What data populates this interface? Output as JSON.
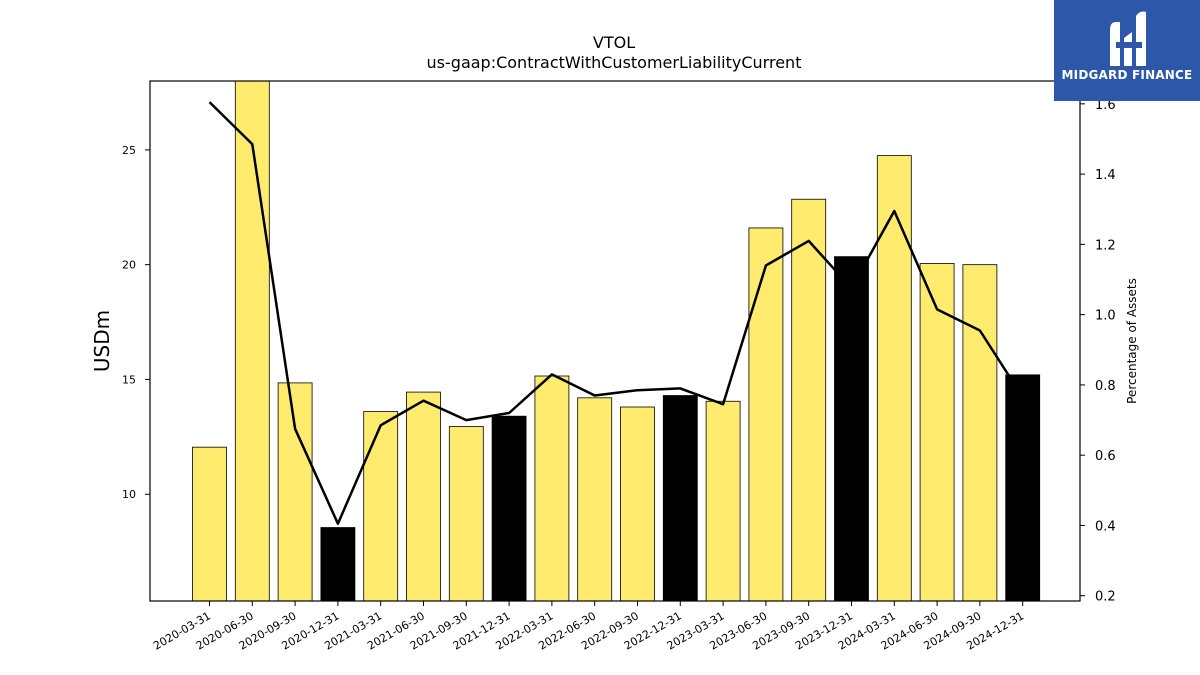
{
  "brand": {
    "name": "MIDGARD FINANCE",
    "bg_color": "#2d57a8"
  },
  "chart_data": {
    "type": "bar",
    "title": "VTOL",
    "subtitle": "us-gaap:ContractWithCustomerLiabilityCurrent",
    "ylabel": "USDm",
    "y2label": "Percentage of Assets",
    "categories": [
      "2020-03-31",
      "2020-06-30",
      "2020-09-30",
      "2020-12-31",
      "2021-03-31",
      "2021-06-30",
      "2021-09-30",
      "2021-12-31",
      "2022-03-31",
      "2022-06-30",
      "2022-09-30",
      "2022-12-31",
      "2023-03-31",
      "2023-06-30",
      "2023-09-30",
      "2023-12-31",
      "2024-03-31",
      "2024-06-30",
      "2024-09-30",
      "2024-12-31"
    ],
    "series": [
      {
        "type": "bar",
        "axis": "left",
        "values": [
          12.05,
          28.0,
          14.85,
          8.55,
          13.6,
          14.45,
          12.95,
          13.4,
          15.15,
          14.2,
          13.8,
          14.3,
          14.05,
          21.6,
          22.85,
          20.35,
          24.75,
          20.05,
          20.0,
          15.2
        ],
        "colors": [
          "#ffec6f",
          "#ffec6f",
          "#ffec6f",
          "#000000",
          "#ffec6f",
          "#ffec6f",
          "#ffec6f",
          "#000000",
          "#ffec6f",
          "#ffec6f",
          "#ffec6f",
          "#000000",
          "#ffec6f",
          "#ffec6f",
          "#ffec6f",
          "#000000",
          "#ffec6f",
          "#ffec6f",
          "#ffec6f",
          "#000000"
        ]
      },
      {
        "type": "line",
        "axis": "right",
        "color": "#000000",
        "values": [
          1.605,
          1.485,
          0.675,
          0.405,
          0.685,
          0.755,
          0.7,
          0.72,
          0.83,
          0.77,
          0.785,
          0.79,
          0.745,
          1.14,
          1.21,
          1.075,
          1.295,
          1.015,
          0.955,
          0.765
        ]
      }
    ],
    "ylim": [
      5.35,
      28.0
    ],
    "yticks": [
      10,
      15,
      20,
      25
    ],
    "y2lim": [
      0.185,
      1.665
    ],
    "y2ticks": [
      "0.2",
      "0.4",
      "0.6",
      "0.8",
      "1.0",
      "1.2",
      "1.4",
      "1.6"
    ],
    "grid": false,
    "legend": "none"
  }
}
